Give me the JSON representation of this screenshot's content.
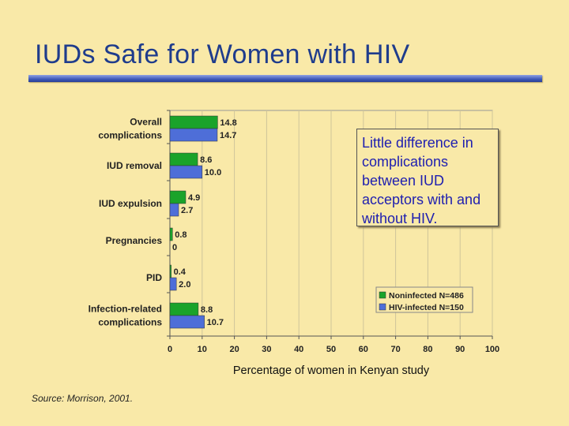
{
  "slide": {
    "title": "IUDs Safe for Women with HIV",
    "callout": "Little difference in complications between IUD acceptors with and without HIV.",
    "source": "Source: Morrison, 2001."
  },
  "colors": {
    "background": "#f9e9a8",
    "title": "#1f3c8c",
    "noninfected": "#1aa32a",
    "hiv_infected": "#4e6ed8",
    "callout_text": "#2020b0"
  },
  "chart_data": {
    "type": "bar",
    "orientation": "horizontal",
    "title": "",
    "xlabel": "Percentage of women in Kenyan study",
    "ylabel": "",
    "xlim": [
      0,
      100
    ],
    "xticks": [
      0,
      10,
      20,
      30,
      40,
      50,
      60,
      70,
      80,
      90,
      100
    ],
    "grid": true,
    "legend_position": "bottom-right",
    "categories": [
      [
        "Overall",
        "complications"
      ],
      [
        "IUD removal"
      ],
      [
        "IUD expulsion"
      ],
      [
        "Pregnancies"
      ],
      [
        "PID"
      ],
      [
        "Infection-related",
        "complications"
      ]
    ],
    "series": [
      {
        "name": "Noninfected N=486",
        "values": [
          14.8,
          8.6,
          4.9,
          0.8,
          0.4,
          8.8
        ],
        "labels": [
          "14.8",
          "8.6",
          "4.9",
          "0.8",
          "0.4",
          "8.8"
        ]
      },
      {
        "name": "HIV-infected N=150",
        "values": [
          14.7,
          10.0,
          2.7,
          0,
          2.0,
          10.7
        ],
        "labels": [
          "14.7",
          "10.0",
          "2.7",
          "0",
          "2.0",
          "10.7"
        ]
      }
    ]
  }
}
